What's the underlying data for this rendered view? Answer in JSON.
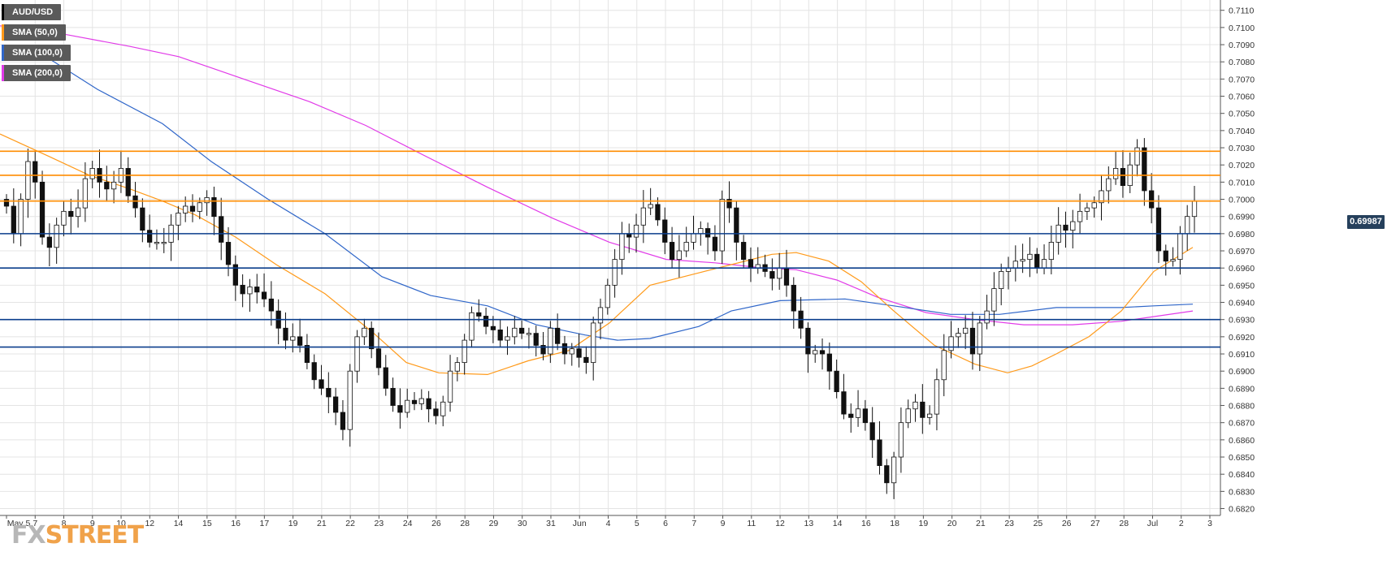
{
  "legend": [
    {
      "label": "AUD/USD",
      "color": "#000000"
    },
    {
      "label": "SMA (50,0)",
      "color": "#ff9a1a"
    },
    {
      "label": "SMA (100,0)",
      "color": "#2f66c9"
    },
    {
      "label": "SMA (200,0)",
      "color": "#e13ae8"
    }
  ],
  "logo": {
    "part1": "FX",
    "part2": "STREET"
  },
  "current_price": "0.69987",
  "colors": {
    "up": "#ffffff",
    "down": "#111111",
    "resistance": "#ff8c00",
    "support": "#0b3e8c",
    "grid": "#e4e4e4"
  },
  "chart_data": {
    "type": "candlestick",
    "instrument": "AUD/USD",
    "y_range": [
      0.6816,
      0.7116
    ],
    "y_ticks": [
      "0.6820",
      "0.6830",
      "0.6840",
      "0.6850",
      "0.6860",
      "0.6870",
      "0.6880",
      "0.6890",
      "0.6900",
      "0.6910",
      "0.6920",
      "0.6930",
      "0.6940",
      "0.6950",
      "0.6960",
      "0.6970",
      "0.6980",
      "0.6990",
      "0.7000",
      "0.7010",
      "0.7020",
      "0.7030",
      "0.7040",
      "0.7050",
      "0.7060",
      "0.7070",
      "0.7080",
      "0.7090",
      "0.7100",
      "0.7110"
    ],
    "x_tick_labels": [
      "May 5",
      "7",
      "8",
      "9",
      "10",
      "12",
      "14",
      "15",
      "16",
      "17",
      "19",
      "21",
      "22",
      "23",
      "24",
      "26",
      "28",
      "29",
      "30",
      "31",
      "Jun",
      "4",
      "5",
      "6",
      "7",
      "9",
      "11",
      "12",
      "13",
      "14",
      "16",
      "18",
      "19",
      "20",
      "21",
      "23",
      "25",
      "26",
      "27",
      "28",
      "Jul",
      "2",
      "3"
    ],
    "resistance_levels": [
      0.6999,
      0.7014,
      0.7028
    ],
    "support_levels": [
      0.698,
      0.696,
      0.693,
      0.6914
    ],
    "last_price": 0.69987,
    "candles": [
      0.6996,
      0.698,
      0.7,
      0.7022,
      0.701,
      0.6978,
      0.6972,
      0.6985,
      0.6993,
      0.699,
      0.6995,
      0.7012,
      0.7018,
      0.701,
      0.7006,
      0.701,
      0.7018,
      0.7002,
      0.6995,
      0.6982,
      0.6975,
      0.6975,
      0.6975,
      0.6985,
      0.6992,
      0.6996,
      0.6993,
      0.6998,
      0.7001,
      0.699,
      0.6975,
      0.6962,
      0.695,
      0.6945,
      0.6949,
      0.6946,
      0.6942,
      0.6935,
      0.6925,
      0.6918,
      0.692,
      0.6915,
      0.6905,
      0.6895,
      0.689,
      0.6885,
      0.6876,
      0.6866,
      0.69,
      0.692,
      0.6925,
      0.6913,
      0.6902,
      0.689,
      0.688,
      0.6876,
      0.6883,
      0.6881,
      0.6884,
      0.6878,
      0.6874,
      0.6882,
      0.69,
      0.6905,
      0.6918,
      0.6934,
      0.6932,
      0.6926,
      0.6924,
      0.6918,
      0.692,
      0.6925,
      0.6922,
      0.6922,
      0.6915,
      0.691,
      0.6925,
      0.6916,
      0.691,
      0.6913,
      0.6908,
      0.6905,
      0.6928,
      0.6937,
      0.695,
      0.6965,
      0.698,
      0.6978,
      0.6985,
      0.6995,
      0.6997,
      0.6988,
      0.6975,
      0.6965,
      0.697,
      0.6975,
      0.698,
      0.6983,
      0.6978,
      0.697,
      0.7,
      0.6995,
      0.6975,
      0.6965,
      0.696,
      0.6962,
      0.6958,
      0.6954,
      0.696,
      0.695,
      0.6935,
      0.6925,
      0.691,
      0.6912,
      0.691,
      0.69,
      0.6888,
      0.6875,
      0.6873,
      0.6878,
      0.687,
      0.686,
      0.6845,
      0.6835,
      0.685,
      0.687,
      0.6878,
      0.6882,
      0.6873,
      0.6875,
      0.6895,
      0.6912,
      0.692,
      0.6922,
      0.6925,
      0.691,
      0.6928,
      0.6935,
      0.6948,
      0.6958,
      0.696,
      0.6964,
      0.6965,
      0.6968,
      0.696,
      0.6965,
      0.6975,
      0.6985,
      0.6982,
      0.6987,
      0.6993,
      0.6995,
      0.6998,
      0.7005,
      0.7012,
      0.7018,
      0.7008,
      0.702,
      0.703,
      0.7005,
      0.6995,
      0.697,
      0.6964,
      0.6965,
      0.698,
      0.699,
      0.6999
    ],
    "sma_50": [
      [
        0,
        0.7038
      ],
      [
        60,
        0.7025
      ],
      [
        110,
        0.7014
      ],
      [
        160,
        0.7006
      ],
      [
        200,
        0.6999
      ],
      [
        240,
        0.6991
      ],
      [
        290,
        0.6978
      ],
      [
        340,
        0.6962
      ],
      [
        400,
        0.6945
      ],
      [
        460,
        0.6922
      ],
      [
        500,
        0.6905
      ],
      [
        540,
        0.6899
      ],
      [
        600,
        0.6898
      ],
      [
        650,
        0.6906
      ],
      [
        700,
        0.6912
      ],
      [
        750,
        0.6928
      ],
      [
        800,
        0.695
      ],
      [
        850,
        0.6956
      ],
      [
        900,
        0.6962
      ],
      [
        950,
        0.6968
      ],
      [
        980,
        0.6969
      ],
      [
        1020,
        0.6964
      ],
      [
        1060,
        0.6952
      ],
      [
        1100,
        0.6935
      ],
      [
        1150,
        0.6915
      ],
      [
        1200,
        0.6904
      ],
      [
        1240,
        0.6899
      ],
      [
        1270,
        0.6903
      ],
      [
        1300,
        0.691
      ],
      [
        1340,
        0.692
      ],
      [
        1380,
        0.6935
      ],
      [
        1420,
        0.6958
      ],
      [
        1468,
        0.6972
      ]
    ],
    "sma_100": [
      [
        60,
        0.7082
      ],
      [
        120,
        0.7064
      ],
      [
        200,
        0.7044
      ],
      [
        260,
        0.7022
      ],
      [
        330,
        0.7
      ],
      [
        400,
        0.698
      ],
      [
        470,
        0.6955
      ],
      [
        530,
        0.6944
      ],
      [
        600,
        0.6938
      ],
      [
        660,
        0.6927
      ],
      [
        720,
        0.6921
      ],
      [
        760,
        0.6918
      ],
      [
        800,
        0.6919
      ],
      [
        860,
        0.6926
      ],
      [
        900,
        0.6935
      ],
      [
        960,
        0.6941
      ],
      [
        1040,
        0.6942
      ],
      [
        1100,
        0.6938
      ],
      [
        1170,
        0.6933
      ],
      [
        1230,
        0.6933
      ],
      [
        1300,
        0.6937
      ],
      [
        1380,
        0.6937
      ],
      [
        1420,
        0.6938
      ],
      [
        1468,
        0.6939
      ]
    ],
    "sma_200": [
      [
        0,
        0.7101
      ],
      [
        80,
        0.7096
      ],
      [
        160,
        0.7089
      ],
      [
        220,
        0.7083
      ],
      [
        300,
        0.707
      ],
      [
        380,
        0.7057
      ],
      [
        450,
        0.7043
      ],
      [
        520,
        0.7026
      ],
      [
        600,
        0.7007
      ],
      [
        680,
        0.6989
      ],
      [
        750,
        0.6975
      ],
      [
        820,
        0.6965
      ],
      [
        880,
        0.6963
      ],
      [
        940,
        0.696
      ],
      [
        980,
        0.6959
      ],
      [
        1030,
        0.6953
      ],
      [
        1080,
        0.6943
      ],
      [
        1140,
        0.6934
      ],
      [
        1200,
        0.693
      ],
      [
        1260,
        0.6927
      ],
      [
        1320,
        0.6927
      ],
      [
        1380,
        0.6929
      ],
      [
        1468,
        0.6935
      ]
    ]
  }
}
